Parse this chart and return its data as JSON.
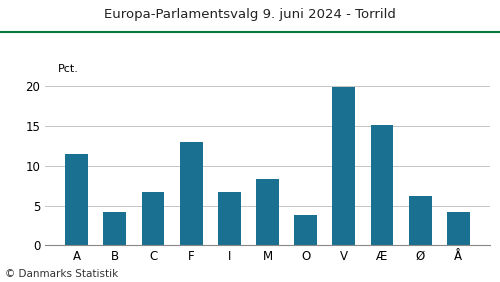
{
  "title": "Europa-Parlamentsvalg 9. juni 2024 - Torrild",
  "categories": [
    "A",
    "B",
    "C",
    "F",
    "I",
    "M",
    "O",
    "V",
    "Æ",
    "Ø",
    "Å"
  ],
  "values": [
    11.5,
    4.2,
    6.7,
    13.0,
    6.7,
    8.3,
    3.8,
    19.9,
    15.2,
    6.2,
    4.2
  ],
  "bar_color": "#1a7090",
  "ylabel": "Pct.",
  "ylim": [
    0,
    22
  ],
  "yticks": [
    0,
    5,
    10,
    15,
    20
  ],
  "footer": "© Danmarks Statistik",
  "title_color": "#222222",
  "top_line_color": "#007a3d",
  "background_color": "#ffffff",
  "grid_color": "#bbbbbb"
}
